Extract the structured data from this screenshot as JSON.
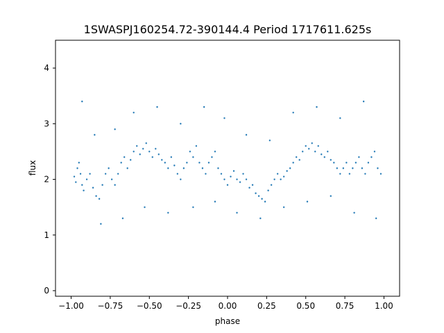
{
  "chart_data": {
    "type": "scatter",
    "title": "1SWASPJ160254.72-390144.4 Period 1717611.625s",
    "xlabel": "phase",
    "ylabel": "flux",
    "xlim": [
      -1.1,
      1.1
    ],
    "ylim": [
      -0.1,
      4.5
    ],
    "xticks": [
      -1.0,
      -0.75,
      -0.5,
      -0.25,
      0.0,
      0.25,
      0.5,
      0.75,
      1.0
    ],
    "xtick_labels": [
      "−1.00",
      "−0.75",
      "−0.50",
      "−0.25",
      "0.00",
      "0.25",
      "0.50",
      "0.75",
      "1.00"
    ],
    "yticks": [
      0,
      1,
      2,
      3,
      4
    ],
    "ytick_labels": [
      "0",
      "1",
      "2",
      "3",
      "4"
    ],
    "grid": false,
    "legend": "none",
    "marker_color": "#1f77b4",
    "series": [
      {
        "x": [
          -0.98,
          -0.97,
          -0.96,
          -0.95,
          -0.94,
          -0.93,
          -0.92,
          -0.9,
          -0.88,
          -0.86,
          -0.84,
          -0.82,
          -0.8,
          -0.78,
          -0.76,
          -0.74,
          -0.72,
          -0.7,
          -0.68,
          -0.66,
          -0.64,
          -0.62,
          -0.6,
          -0.58,
          -0.56,
          -0.54,
          -0.52,
          -0.5,
          -0.48,
          -0.46,
          -0.44,
          -0.42,
          -0.4,
          -0.38,
          -0.36,
          -0.34,
          -0.32,
          -0.3,
          -0.28,
          -0.26,
          -0.24,
          -0.22,
          -0.2,
          -0.18,
          -0.16,
          -0.14,
          -0.12,
          -0.1,
          -0.08,
          -0.06,
          -0.04,
          -0.02,
          0.0,
          0.02,
          0.04,
          0.06,
          0.08,
          0.1,
          0.12,
          0.14,
          0.16,
          0.18,
          0.2,
          0.22,
          0.24,
          0.26,
          0.28,
          0.3,
          0.32,
          0.34,
          0.36,
          0.38,
          0.4,
          0.42,
          0.44,
          0.46,
          0.48,
          0.5,
          0.52,
          0.54,
          0.56,
          0.58,
          0.6,
          0.62,
          0.64,
          0.66,
          0.68,
          0.7,
          0.72,
          0.74,
          0.76,
          0.78,
          0.8,
          0.82,
          0.84,
          0.86,
          0.88,
          0.9,
          0.92,
          0.94,
          0.96,
          0.98,
          -0.93,
          -0.85,
          -0.72,
          -0.6,
          -0.45,
          -0.3,
          -0.15,
          -0.02,
          0.12,
          0.27,
          0.42,
          0.57,
          0.72,
          0.87,
          -0.81,
          -0.67,
          -0.53,
          -0.38,
          -0.22,
          -0.08,
          0.06,
          0.21,
          0.36,
          0.51,
          0.66,
          0.81,
          0.95
        ],
        "y": [
          2.05,
          1.95,
          2.2,
          2.3,
          2.1,
          1.9,
          1.8,
          2.0,
          2.1,
          1.85,
          1.7,
          1.65,
          1.9,
          2.1,
          2.2,
          2.0,
          1.9,
          2.1,
          2.3,
          2.4,
          2.2,
          2.35,
          2.5,
          2.6,
          2.45,
          2.55,
          2.65,
          2.5,
          2.4,
          2.55,
          2.45,
          2.35,
          2.3,
          2.2,
          2.4,
          2.25,
          2.1,
          2.0,
          2.2,
          2.3,
          2.5,
          2.4,
          2.6,
          2.3,
          2.2,
          2.1,
          2.3,
          2.4,
          2.5,
          2.2,
          2.1,
          2.0,
          1.9,
          2.05,
          2.15,
          2.0,
          1.95,
          2.1,
          2.0,
          1.85,
          1.9,
          1.75,
          1.7,
          1.65,
          1.6,
          1.8,
          1.9,
          2.0,
          2.1,
          2.0,
          2.05,
          2.15,
          2.2,
          2.3,
          2.4,
          2.35,
          2.5,
          2.6,
          2.55,
          2.65,
          2.5,
          2.6,
          2.45,
          2.4,
          2.5,
          2.35,
          2.3,
          2.2,
          2.1,
          2.2,
          2.3,
          2.1,
          2.2,
          2.3,
          2.4,
          2.2,
          2.1,
          2.3,
          2.4,
          2.5,
          2.2,
          2.1,
          3.4,
          2.8,
          2.9,
          3.2,
          3.3,
          3.0,
          3.3,
          3.1,
          2.8,
          2.7,
          3.2,
          3.3,
          3.1,
          3.4,
          1.2,
          1.3,
          1.5,
          1.4,
          1.5,
          1.6,
          1.4,
          1.3,
          1.5,
          1.6,
          1.7,
          1.4,
          1.3
        ]
      }
    ]
  }
}
